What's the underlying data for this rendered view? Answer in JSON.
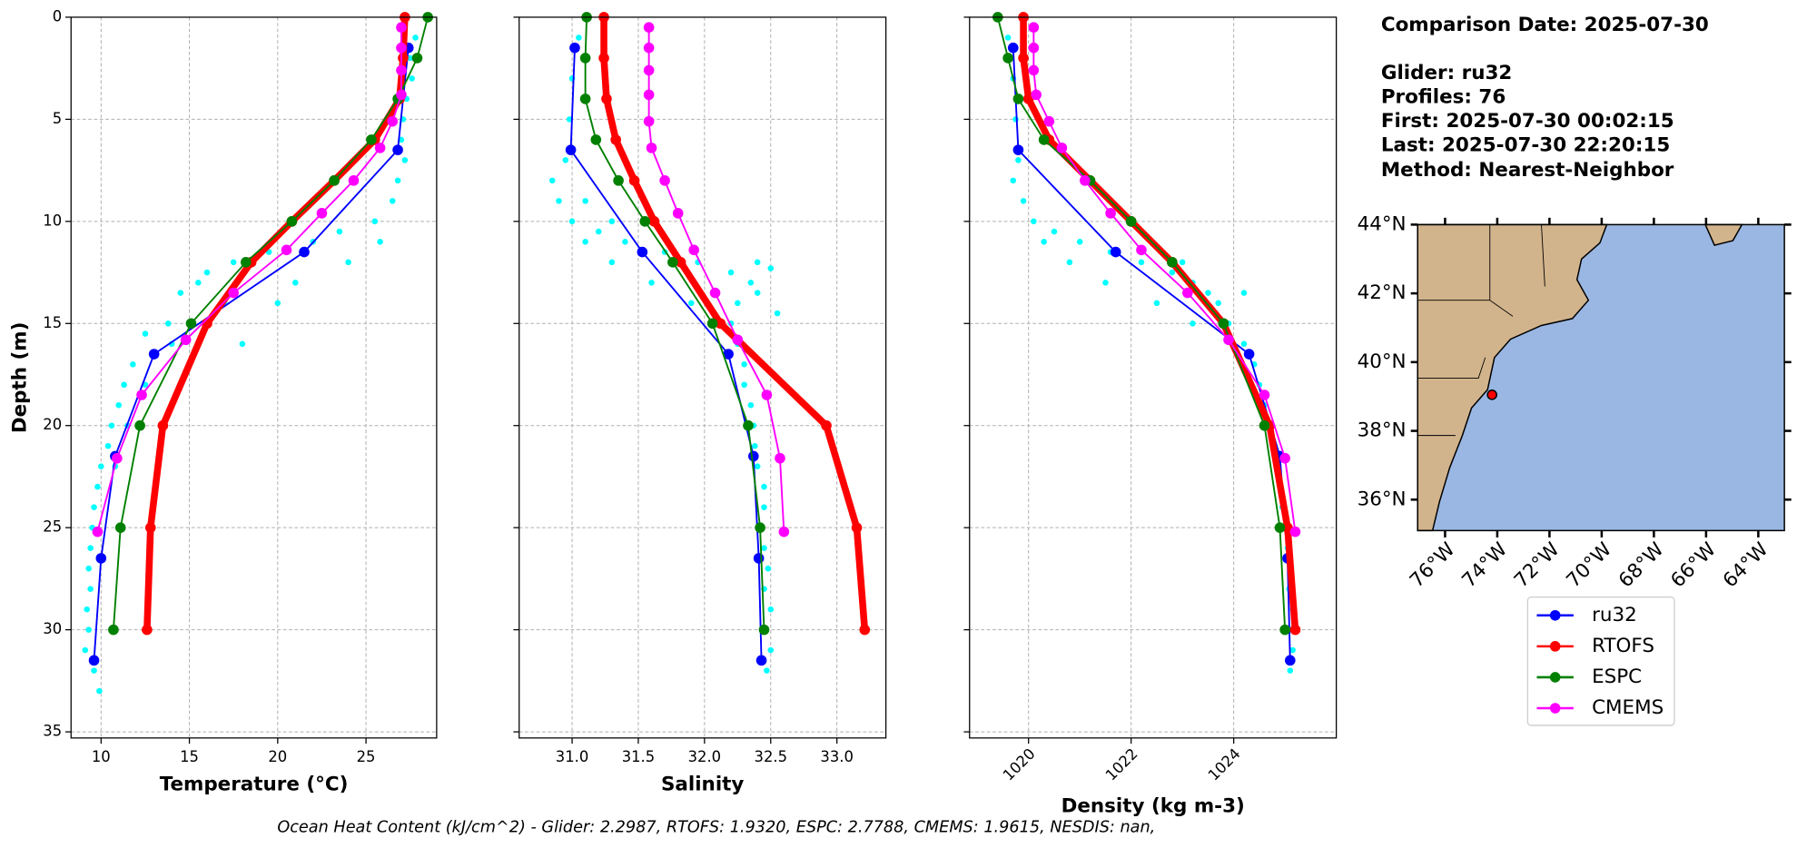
{
  "chart_data": [
    {
      "type": "line",
      "xlabel": "Temperature (°C)",
      "ylabel": "Depth (m)",
      "xlim": [
        8.3,
        29.0
      ],
      "xticks": [
        10,
        15,
        20,
        25
      ],
      "ylim": [
        35.3,
        0
      ],
      "yticks": [
        0,
        5,
        10,
        15,
        20,
        25,
        30,
        35
      ],
      "grid": true,
      "scatter": {
        "color": "#00ffff",
        "depth": [
          1,
          2,
          3,
          4,
          5,
          6,
          7,
          8,
          9,
          10,
          10.5,
          11,
          11.5,
          12,
          12.5,
          13,
          13.5,
          14,
          15,
          15.5,
          16,
          17,
          18,
          19,
          20,
          21,
          22,
          23,
          24,
          25,
          26,
          27,
          28,
          29,
          30,
          31,
          32,
          33,
          11,
          12,
          13,
          14,
          16,
          18,
          20,
          22
        ],
        "values": [
          27.8,
          27.5,
          27.6,
          27.3,
          27.1,
          27.0,
          27.2,
          26.8,
          26.5,
          25.5,
          23.5,
          22.0,
          19.5,
          17.5,
          16.0,
          15.5,
          14.5,
          17.0,
          13.8,
          12.5,
          18.0,
          11.8,
          11.3,
          11.0,
          10.6,
          10.4,
          10.0,
          9.8,
          9.6,
          9.5,
          9.4,
          9.3,
          9.4,
          9.2,
          9.3,
          9.1,
          9.6,
          9.9,
          25.8,
          24.0,
          21.0,
          20.0,
          14.0,
          12.5,
          11.5,
          10.8
        ]
      },
      "series": [
        {
          "name": "ru32",
          "color": "#0000ff",
          "linewidth": 1.5,
          "depth": [
            1.5,
            6.5,
            11.5,
            16.5,
            21.5,
            26.5,
            31.5
          ],
          "values": [
            27.4,
            26.8,
            21.5,
            13.0,
            10.8,
            10.0,
            9.6
          ]
        },
        {
          "name": "RTOFS",
          "color": "#ff0000",
          "linewidth": 6,
          "depth": [
            0,
            2,
            4,
            6,
            8,
            10,
            12,
            15,
            20,
            25,
            30
          ],
          "values": [
            27.2,
            27.1,
            26.9,
            25.5,
            23.2,
            20.8,
            18.5,
            16.0,
            13.5,
            12.8,
            12.6
          ]
        },
        {
          "name": "ESPC",
          "color": "#008000",
          "linewidth": 1.5,
          "depth": [
            0,
            2,
            4,
            6,
            8,
            10,
            12,
            15,
            20,
            25,
            30
          ],
          "values": [
            28.5,
            27.9,
            26.8,
            25.3,
            23.2,
            20.8,
            18.2,
            15.1,
            12.2,
            11.1,
            10.7
          ]
        },
        {
          "name": "CMEMS",
          "color": "#ff00ff",
          "linewidth": 1.5,
          "depth": [
            0.5,
            1.5,
            2.6,
            3.8,
            5.1,
            6.4,
            8.0,
            9.6,
            11.4,
            13.5,
            15.8,
            18.5,
            21.6,
            25.2
          ],
          "values": [
            27.0,
            27.0,
            27.0,
            27.0,
            26.5,
            25.8,
            24.3,
            22.5,
            20.5,
            17.5,
            14.8,
            12.3,
            10.9,
            9.8
          ]
        }
      ]
    },
    {
      "type": "line",
      "xlabel": "Salinity",
      "xlim": [
        30.6,
        33.37
      ],
      "xticks": [
        {
          "value": 31.0,
          "label": "31.0"
        },
        31.5,
        {
          "value": 32.0,
          "label": "32.0"
        },
        32.5,
        {
          "value": 33.0,
          "label": "33.0"
        }
      ],
      "ylim": [
        35.3,
        0
      ],
      "yticks": [
        0,
        5,
        10,
        15,
        20,
        25,
        30,
        35
      ],
      "ytick_labels": false,
      "grid": true,
      "scatter": {
        "color": "#00ffff",
        "depth": [
          1,
          3,
          5,
          7,
          8,
          9,
          10,
          10.5,
          11,
          11.5,
          12,
          12.5,
          13,
          13.5,
          14,
          15,
          16,
          17,
          18,
          19,
          20,
          21,
          22,
          23,
          24,
          25,
          26,
          27,
          28,
          29,
          30,
          31,
          32,
          11,
          12,
          13,
          14,
          15,
          9,
          10,
          12,
          12.3,
          14.5
        ],
        "values": [
          31.05,
          31.0,
          30.98,
          30.95,
          30.85,
          30.9,
          31.0,
          31.2,
          31.4,
          31.7,
          31.95,
          32.2,
          32.35,
          32.4,
          32.25,
          32.2,
          32.25,
          32.3,
          32.3,
          32.35,
          32.37,
          32.38,
          32.4,
          32.45,
          32.45,
          32.42,
          32.45,
          32.48,
          32.45,
          32.5,
          32.46,
          32.5,
          32.47,
          31.1,
          31.3,
          31.6,
          31.9,
          32.05,
          31.1,
          31.3,
          32.4,
          32.5,
          32.55
        ]
      },
      "series": [
        {
          "name": "ru32",
          "color": "#0000ff",
          "linewidth": 1.5,
          "depth": [
            1.5,
            6.5,
            11.5,
            16.5,
            21.5,
            26.5,
            31.5
          ],
          "values": [
            31.02,
            30.99,
            31.53,
            32.18,
            32.37,
            32.41,
            32.43
          ]
        },
        {
          "name": "RTOFS",
          "color": "#ff0000",
          "linewidth": 6,
          "depth": [
            0,
            2,
            4,
            6,
            8,
            10,
            12,
            15,
            20,
            25,
            30
          ],
          "values": [
            31.24,
            31.24,
            31.26,
            31.33,
            31.47,
            31.62,
            31.82,
            32.12,
            32.92,
            33.15,
            33.21
          ]
        },
        {
          "name": "ESPC",
          "color": "#008000",
          "linewidth": 1.5,
          "depth": [
            0,
            2,
            4,
            6,
            8,
            10,
            12,
            15,
            20,
            25,
            30
          ],
          "values": [
            31.11,
            31.1,
            31.1,
            31.18,
            31.35,
            31.55,
            31.76,
            32.06,
            32.33,
            32.42,
            32.45
          ]
        },
        {
          "name": "CMEMS",
          "color": "#ff00ff",
          "linewidth": 1.5,
          "depth": [
            0.5,
            1.5,
            2.6,
            3.8,
            5.1,
            6.4,
            8.0,
            9.6,
            11.4,
            13.5,
            15.8,
            18.5,
            21.6,
            25.2
          ],
          "values": [
            31.58,
            31.58,
            31.58,
            31.58,
            31.58,
            31.6,
            31.7,
            31.8,
            31.92,
            32.08,
            32.25,
            32.47,
            32.57,
            32.6
          ]
        }
      ]
    },
    {
      "type": "line",
      "xlabel": "Density (kg m-3)",
      "xlim": [
        1018.85,
        1026.0
      ],
      "xticks": [
        1020,
        1022,
        1024
      ],
      "xtick_rotation": 45,
      "ylim": [
        35.3,
        0
      ],
      "yticks": [
        0,
        5,
        10,
        15,
        20,
        25,
        30,
        35
      ],
      "ytick_labels": false,
      "grid": true,
      "scatter": {
        "color": "#00ffff",
        "depth": [
          1,
          3,
          5,
          7,
          8,
          9,
          10,
          10.5,
          11,
          11.5,
          12,
          12.5,
          13,
          13.5,
          14,
          15,
          16,
          17,
          18,
          19,
          20,
          21,
          22,
          23,
          24,
          25,
          26,
          27,
          28,
          29,
          30,
          31,
          32,
          11,
          12,
          13,
          14,
          15,
          12,
          13.5
        ],
        "values": [
          1019.6,
          1019.7,
          1019.75,
          1019.8,
          1019.7,
          1019.9,
          1020.1,
          1020.5,
          1021.0,
          1021.6,
          1022.2,
          1022.8,
          1023.2,
          1023.5,
          1023.7,
          1023.9,
          1024.2,
          1024.4,
          1024.5,
          1024.6,
          1024.7,
          1024.8,
          1024.85,
          1024.9,
          1024.95,
          1025.0,
          1025.05,
          1025.1,
          1025.08,
          1025.15,
          1025.12,
          1025.15,
          1025.1,
          1020.3,
          1020.8,
          1021.5,
          1022.5,
          1023.2,
          1023.0,
          1024.2
        ]
      },
      "series": [
        {
          "name": "ru32",
          "color": "#0000ff",
          "linewidth": 1.5,
          "depth": [
            1.5,
            6.5,
            11.5,
            16.5,
            21.5,
            26.5,
            31.5
          ],
          "values": [
            1019.7,
            1019.8,
            1021.7,
            1024.3,
            1024.9,
            1025.05,
            1025.1
          ]
        },
        {
          "name": "RTOFS",
          "color": "#ff0000",
          "linewidth": 6,
          "depth": [
            0,
            2,
            4,
            6,
            8,
            10,
            12,
            15,
            20,
            25,
            30
          ],
          "values": [
            1019.9,
            1019.9,
            1020.0,
            1020.4,
            1021.2,
            1022.0,
            1022.8,
            1023.8,
            1024.7,
            1025.05,
            1025.2
          ]
        },
        {
          "name": "ESPC",
          "color": "#008000",
          "linewidth": 1.5,
          "depth": [
            0,
            2,
            4,
            6,
            8,
            10,
            12,
            15,
            20,
            25,
            30
          ],
          "values": [
            1019.4,
            1019.6,
            1019.8,
            1020.3,
            1021.2,
            1022.0,
            1022.8,
            1023.8,
            1024.6,
            1024.9,
            1025.0
          ]
        },
        {
          "name": "CMEMS",
          "color": "#ff00ff",
          "linewidth": 1.5,
          "depth": [
            0.5,
            1.5,
            2.6,
            3.8,
            5.1,
            6.4,
            8.0,
            9.6,
            11.4,
            13.5,
            15.8,
            18.5,
            21.6,
            25.2
          ],
          "values": [
            1020.1,
            1020.1,
            1020.1,
            1020.15,
            1020.4,
            1020.65,
            1021.1,
            1021.6,
            1022.2,
            1023.1,
            1023.9,
            1024.6,
            1025.0,
            1025.2
          ]
        }
      ]
    },
    {
      "type": "map",
      "xlim": [
        -77.05,
        -63.0
      ],
      "ylim": [
        35.1,
        44.0
      ],
      "xticks": [
        {
          "value": -76,
          "label": "76°W"
        },
        {
          "value": -74,
          "label": "74°W"
        },
        {
          "value": -72,
          "label": "72°W"
        },
        {
          "value": -70,
          "label": "70°W"
        },
        {
          "value": -68,
          "label": "68°W"
        },
        {
          "value": -66,
          "label": "66°W"
        },
        {
          "value": -64,
          "label": "64°W"
        }
      ],
      "yticks": [
        {
          "value": 36,
          "label": "36°N"
        },
        {
          "value": 38,
          "label": "38°N"
        },
        {
          "value": 40,
          "label": "40°N"
        },
        {
          "value": 42,
          "label": "42°N"
        },
        {
          "value": 44,
          "label": "44°N"
        }
      ],
      "points": {
        "color": "#ff0000",
        "x": [
          -74.2
        ],
        "y": [
          39.05
        ]
      }
    }
  ],
  "info": [
    "Comparison Date: 2025-07-30",
    "Glider: ru32",
    "Profiles: 76",
    "First: 2025-07-30 00:02:15",
    "Last: 2025-07-30 22:20:15",
    "Method: Nearest-Neighbor"
  ],
  "footnote": "Ocean Heat Content (kJ/cm^2) - Glider: 2.2987,  RTOFS: 1.9320,  ESPC: 2.7788,  CMEMS: 1.9615,  NESDIS: nan,"
}
